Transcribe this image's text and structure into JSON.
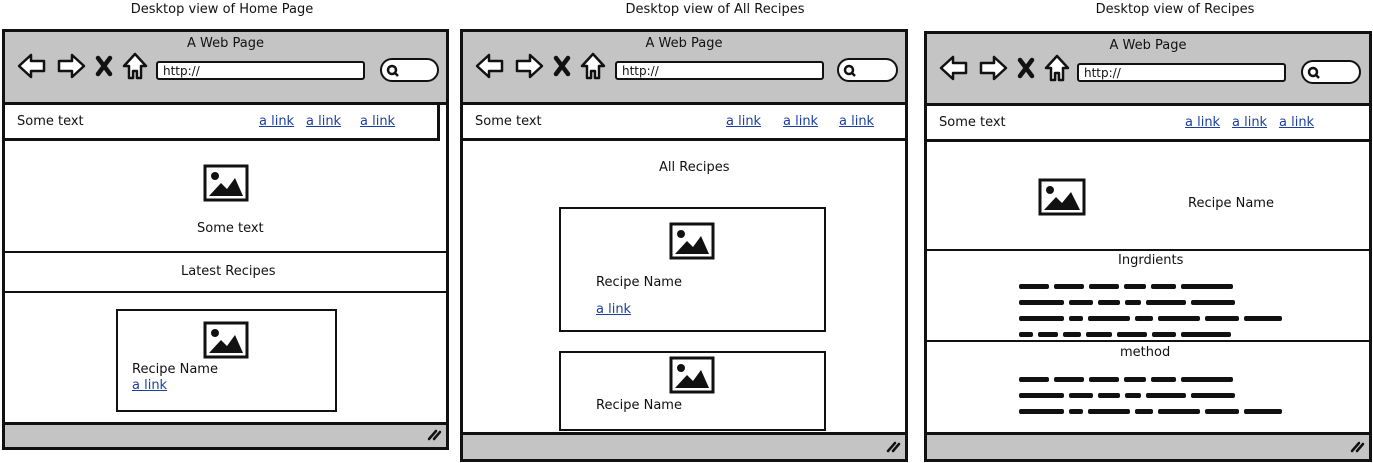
{
  "captions": [
    "Desktop view of Home Page",
    "Desktop view of All Recipes",
    "Desktop view of Recipes"
  ],
  "browser": {
    "title": "A Web Page",
    "url": "http://"
  },
  "navbar": {
    "brand": "Some text",
    "links": [
      "a link",
      "a link",
      "a link"
    ]
  },
  "home": {
    "hero_text": "Some text",
    "section_title": "Latest Recipes",
    "card": {
      "name": "Recipe Name",
      "link": "a link"
    }
  },
  "all_recipes": {
    "heading": "All Recipes",
    "cards": [
      {
        "name": "Recipe Name",
        "link": "a link"
      },
      {
        "name": "Recipe Name"
      }
    ]
  },
  "recipe": {
    "name": "Recipe Name",
    "ingredients_title": "Ingrdients",
    "method_title": "method"
  },
  "icons": [
    "back-arrow-icon",
    "forward-arrow-icon",
    "close-icon",
    "home-icon",
    "search-icon",
    "image-icon",
    "resize-grip-icon"
  ]
}
